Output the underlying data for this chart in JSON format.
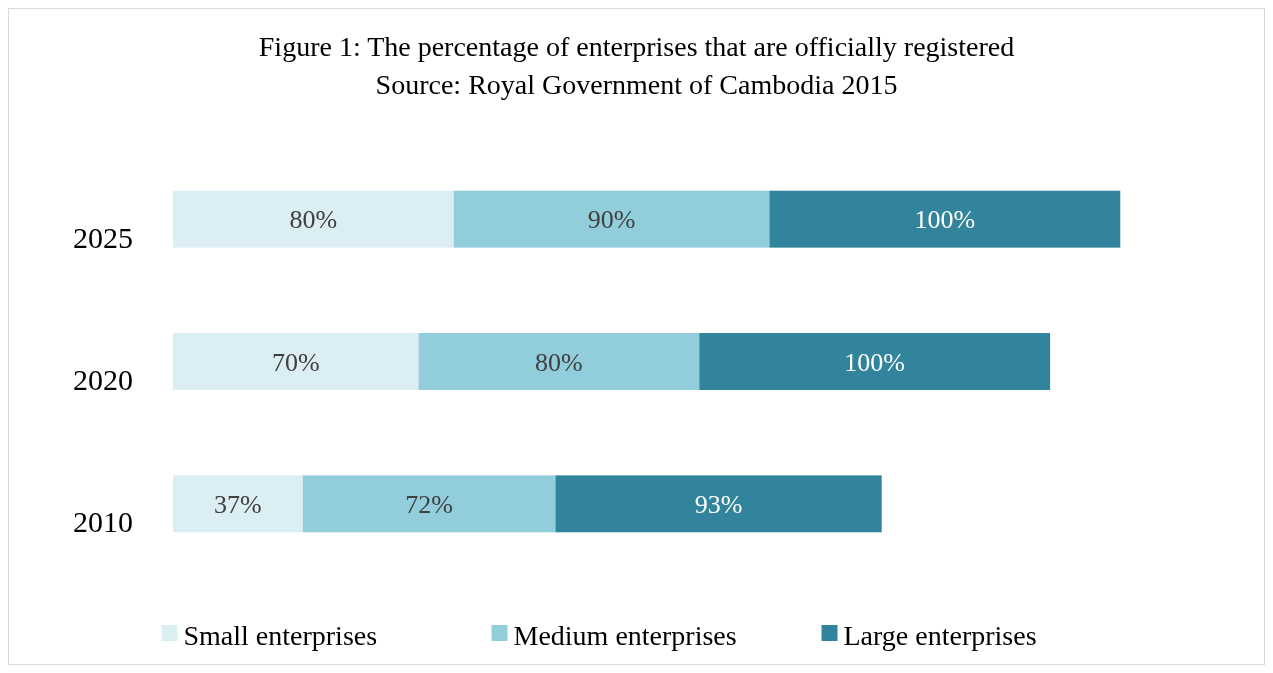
{
  "chart_data": {
    "type": "bar",
    "orientation": "horizontal",
    "stacked": true,
    "title": "Figure 1: The percentage of enterprises that are officially registered",
    "annotations": [
      "Source: Royal Government of Cambodia 2015"
    ],
    "categories": [
      "2025",
      "2020",
      "2010"
    ],
    "series": [
      {
        "name": "Small enterprises",
        "color": "#dbeef4",
        "values": [
          80,
          70,
          37
        ],
        "value_labels": [
          "80%",
          "70%",
          "37%"
        ]
      },
      {
        "name": "Medium enterprises",
        "color": "#92cddc",
        "values": [
          90,
          80,
          72
        ],
        "value_labels": [
          "90%",
          "80%",
          "72%"
        ]
      },
      {
        "name": "Large enterprises",
        "color": "#31849b",
        "values": [
          100,
          100,
          93
        ],
        "value_labels": [
          "100%",
          "100%",
          "93%"
        ]
      }
    ],
    "legend": "bottom"
  }
}
